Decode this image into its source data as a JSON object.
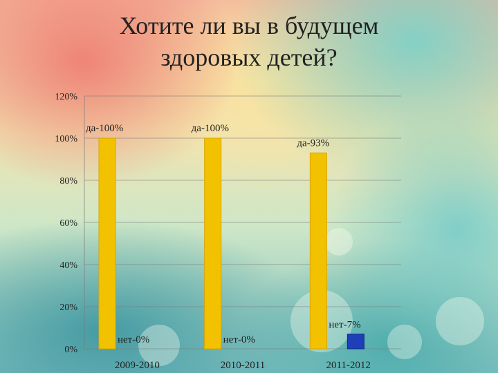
{
  "slide": {
    "title_line1": "Хотите ли вы в будущем",
    "title_line2": "здоровых детей?"
  },
  "chart_data": {
    "type": "bar",
    "categories": [
      "2009-2010",
      "2010-2011",
      "2011-2012"
    ],
    "series": [
      {
        "values": [
          100,
          100,
          93
        ],
        "labels": [
          "да-100%",
          "да-100%",
          "да-93%"
        ],
        "color": "#f2c200"
      },
      {
        "values": [
          0,
          0,
          7
        ],
        "labels": [
          "нет-0%",
          "нет-0%",
          "нет-7%"
        ],
        "color": "#1f3fb8"
      }
    ],
    "yticks": [
      "0%",
      "20%",
      "40%",
      "60%",
      "80%",
      "100%",
      "120%"
    ],
    "ylim": [
      0,
      120
    ],
    "grid": true
  }
}
